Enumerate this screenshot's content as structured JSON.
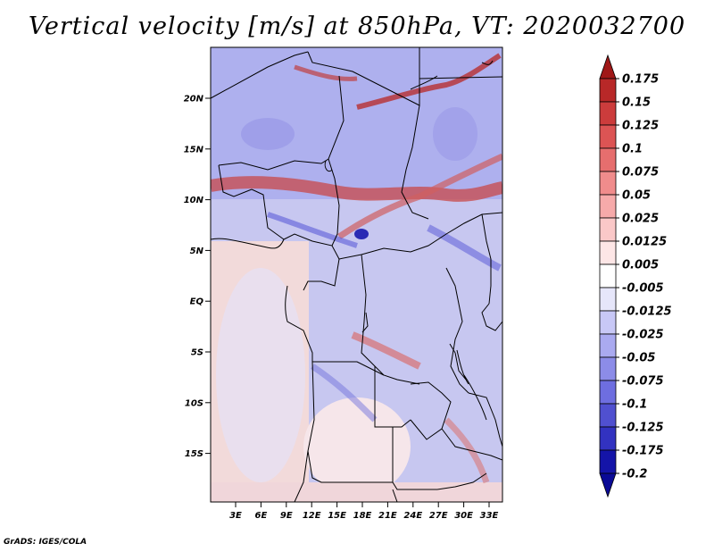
{
  "title": "Vertical velocity [m/s] at 850hPa, VT: 2020032700",
  "credit": "GrADS: IGES/COLA",
  "map": {
    "lat_labels": [
      "20N",
      "15N",
      "10N",
      "5N",
      "EQ",
      "5S",
      "10S",
      "15S"
    ],
    "lon_labels": [
      "3E",
      "6E",
      "9E",
      "12E",
      "15E",
      "18E",
      "21E",
      "24E",
      "27E",
      "30E",
      "33E"
    ],
    "colorbar": {
      "labels": [
        "0.175",
        "0.15",
        "0.125",
        "0.1",
        "0.075",
        "0.05",
        "0.025",
        "0.0125",
        "0.005",
        "-0.005",
        "-0.0125",
        "-0.025",
        "-0.05",
        "-0.075",
        "-0.1",
        "-0.125",
        "-0.175",
        "-0.2"
      ],
      "colors": [
        "#a01818",
        "#b82828",
        "#cc3c3c",
        "#dc5454",
        "#e66e6e",
        "#f08c8c",
        "#f6aaaa",
        "#fac8c8",
        "#fde6e6",
        "#ffffff",
        "#e6e6fa",
        "#c8c8f6",
        "#aaaaf0",
        "#8c8ce8",
        "#6e6ee0",
        "#5050d0",
        "#3232c0",
        "#1414a8",
        "#0a0a96"
      ]
    }
  }
}
